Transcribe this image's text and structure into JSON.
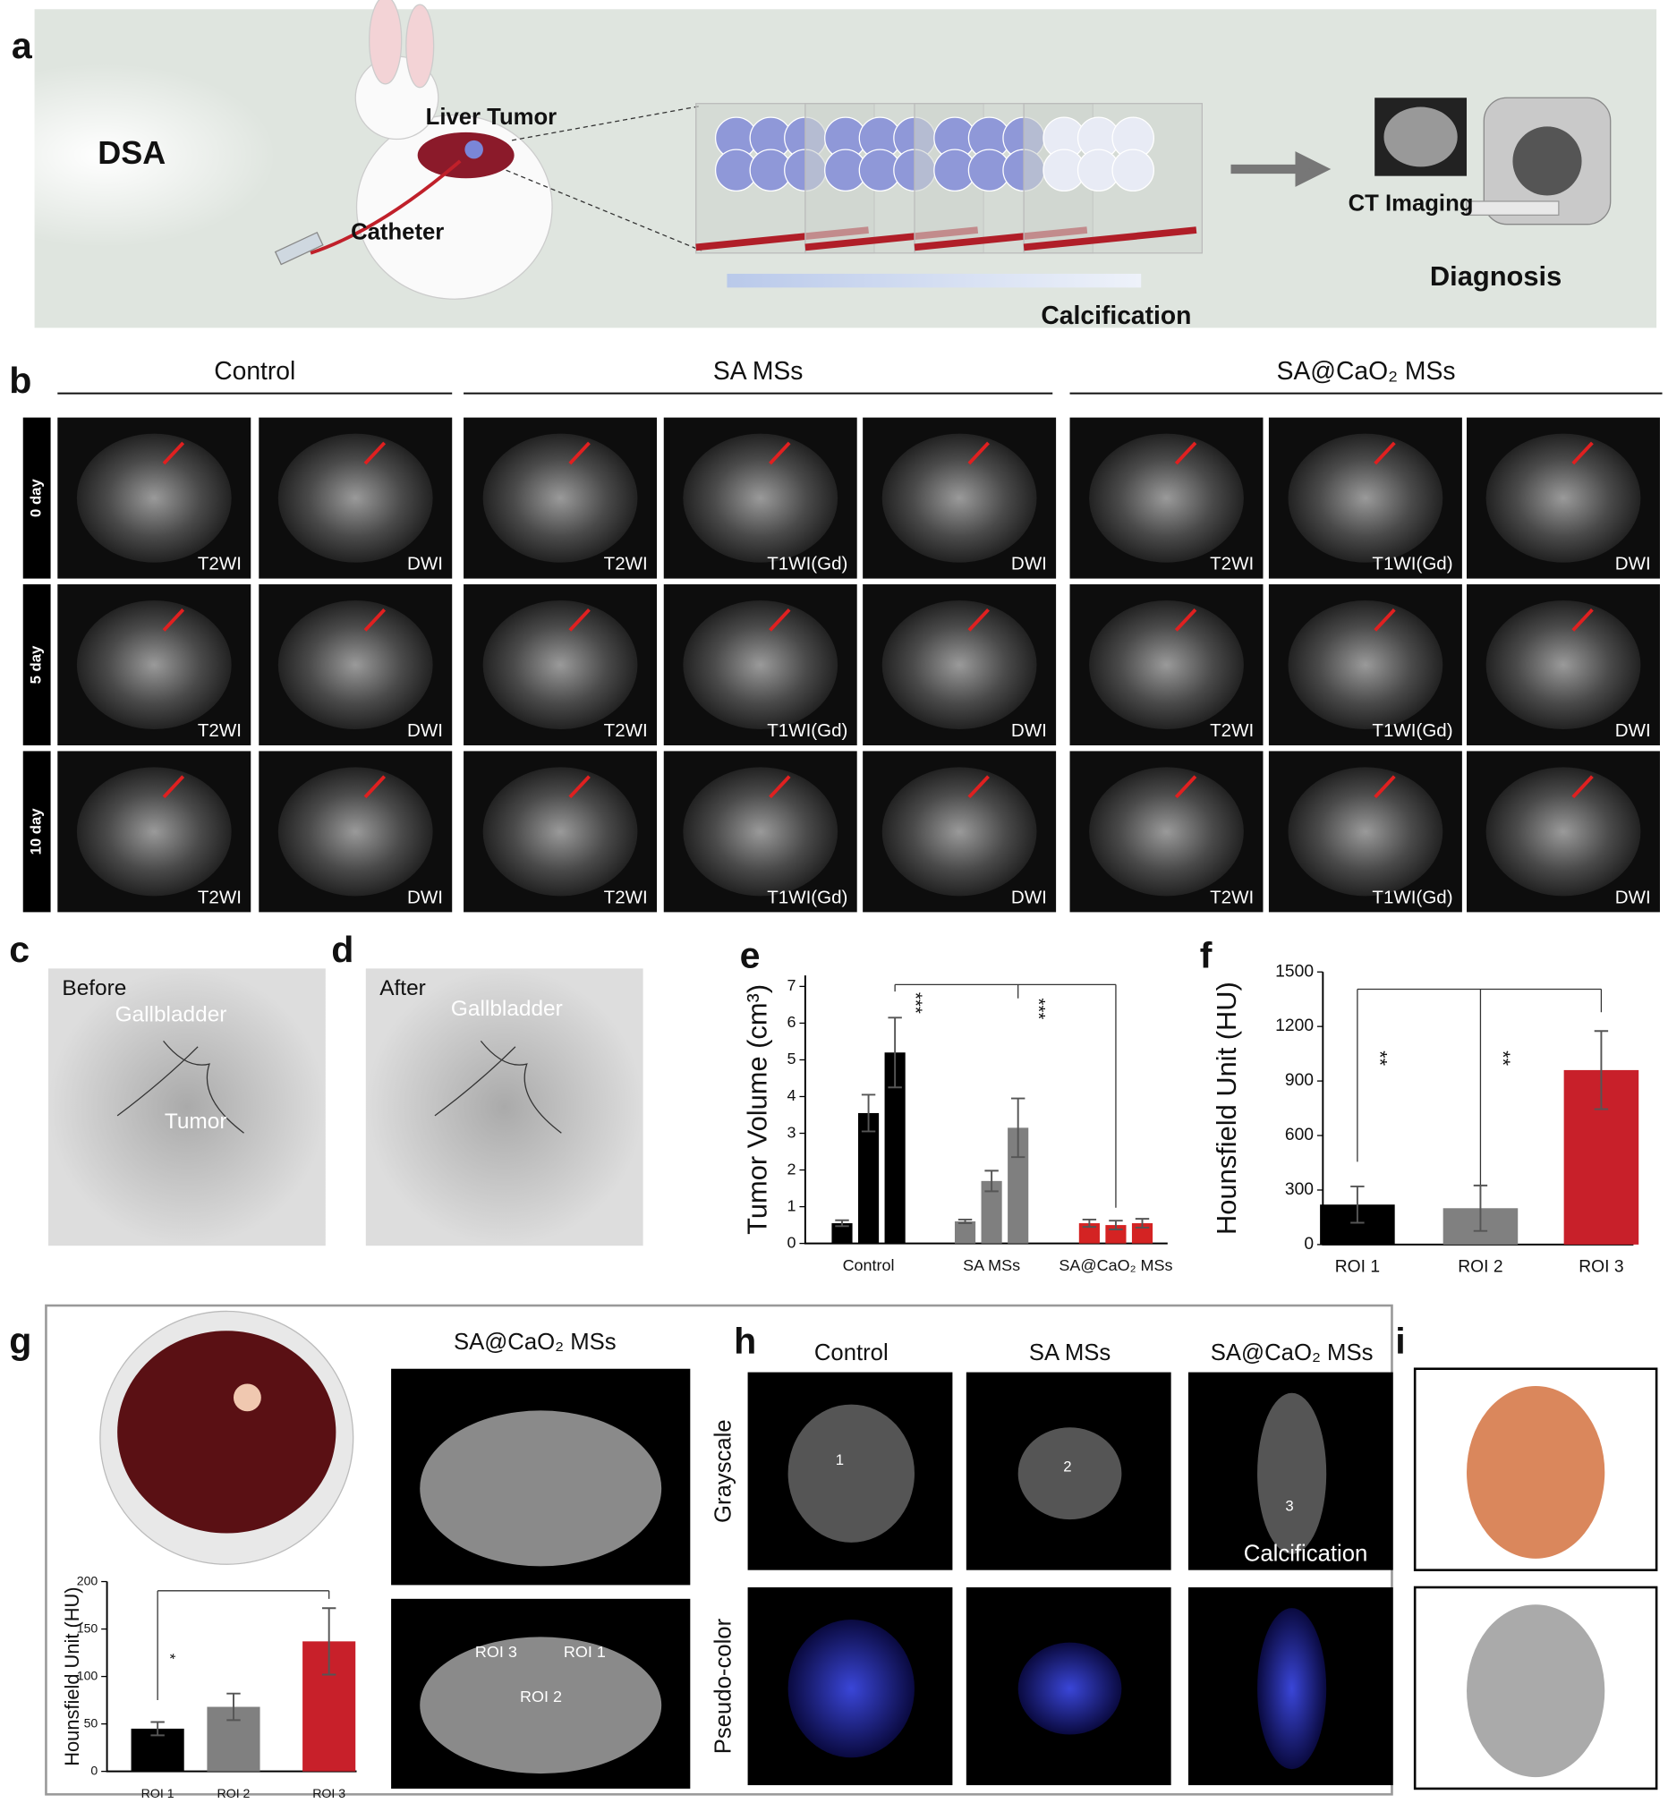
{
  "labels": [
    "a",
    "b",
    "c",
    "d",
    "e",
    "f",
    "g",
    "h",
    "i"
  ],
  "panel_a": {
    "light_source": "DSA",
    "tumor": "Liver Tumor",
    "catheter": "Catheter",
    "process": "Calcification",
    "imaging": "CT Imaging",
    "outcome": "Diagnosis"
  },
  "panel_b": {
    "groups": [
      {
        "title": "Control",
        "images": [
          "T2WI",
          "DWI"
        ]
      },
      {
        "title": "SA MSs",
        "images": [
          "T2WI",
          "T1WI(Gd)",
          "DWI"
        ]
      },
      {
        "title": "SA@CaO₂ MSs",
        "images": [
          "T2WI",
          "T1WI(Gd)",
          "DWI"
        ]
      }
    ],
    "timepoints": [
      "0 day",
      "5 day",
      "10 day"
    ]
  },
  "panel_c": {
    "tag": "Before",
    "labels": [
      "Gallbladder",
      "Tumor"
    ]
  },
  "panel_d": {
    "tag": "After",
    "labels": [
      "Gallbladder"
    ]
  },
  "panel_g": {
    "title": "SA@CaO₂ MSs",
    "roi_labels": [
      "ROI 3",
      "ROI 1",
      "ROI 2"
    ]
  },
  "panel_h": {
    "columns": [
      "Control",
      "SA MSs",
      "SA@CaO₂ MSs"
    ],
    "rows": [
      "Grayscale",
      "Pseudo-color"
    ],
    "overlay": "Calcification",
    "rois": [
      "1",
      "2",
      "3"
    ]
  },
  "chart_data": [
    {
      "type": "bar",
      "ylabel": "Tumor Volume (cm³)",
      "categories": [
        "Control",
        "SA MSs",
        "SA@CaO₂ MSs"
      ],
      "colors": [
        "#000000",
        "#7f7f7f",
        "#d42323"
      ],
      "series": [
        {
          "values": [
            0.55,
            0.6,
            0.55
          ],
          "errors": [
            0.08,
            0.05,
            0.1
          ]
        },
        {
          "values": [
            3.55,
            1.7,
            0.5
          ],
          "errors": [
            0.5,
            0.28,
            0.12
          ]
        },
        {
          "values": [
            5.2,
            3.15,
            0.55
          ],
          "errors": [
            0.95,
            0.8,
            0.12
          ]
        }
      ],
      "ylim": [
        0,
        7.3
      ],
      "yticks": [
        0,
        1,
        2,
        3,
        4,
        5,
        6,
        7
      ],
      "annotations": [
        "***",
        "***"
      ]
    },
    {
      "type": "bar",
      "ylabel": "Hounsfield Unit (HU)",
      "categories": [
        "ROI 1",
        "ROI 2",
        "ROI 3"
      ],
      "colors": [
        "#000000",
        "#808080",
        "#c8202a"
      ],
      "values": [
        220,
        200,
        960
      ],
      "errors": [
        100,
        125,
        215
      ],
      "ylim": [
        0,
        1500
      ],
      "yticks": [
        0,
        300,
        600,
        900,
        1200,
        1500
      ],
      "annotations": [
        "**",
        "**"
      ]
    },
    {
      "type": "bar",
      "ylabel": "Hounsfield Unit (HU)",
      "categories": [
        "ROI 1",
        "ROI 2",
        "ROI 3"
      ],
      "colors": [
        "#000000",
        "#808080",
        "#c8202a"
      ],
      "values": [
        45,
        68,
        137
      ],
      "errors": [
        7,
        14,
        35
      ],
      "ylim": [
        0,
        200
      ],
      "yticks": [
        0,
        50,
        100,
        150,
        200
      ],
      "annotations": [
        "*"
      ]
    }
  ]
}
